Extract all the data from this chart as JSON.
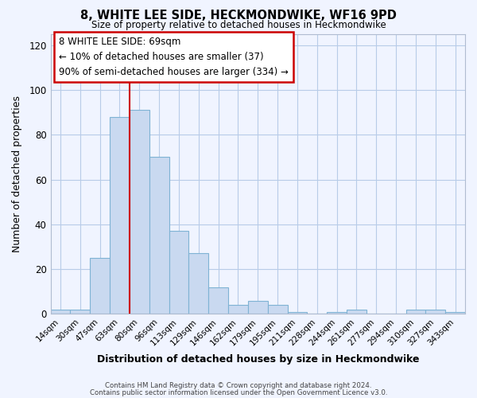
{
  "title": "8, WHITE LEE SIDE, HECKMONDWIKE, WF16 9PD",
  "subtitle": "Size of property relative to detached houses in Heckmondwike",
  "xlabel": "Distribution of detached houses by size in Heckmondwike",
  "ylabel": "Number of detached properties",
  "footer_line1": "Contains HM Land Registry data © Crown copyright and database right 2024.",
  "footer_line2": "Contains public sector information licensed under the Open Government Licence v3.0.",
  "bar_labels": [
    "14sqm",
    "30sqm",
    "47sqm",
    "63sqm",
    "80sqm",
    "96sqm",
    "113sqm",
    "129sqm",
    "146sqm",
    "162sqm",
    "179sqm",
    "195sqm",
    "211sqm",
    "228sqm",
    "244sqm",
    "261sqm",
    "277sqm",
    "294sqm",
    "310sqm",
    "327sqm",
    "343sqm"
  ],
  "bar_values": [
    2,
    2,
    25,
    88,
    91,
    70,
    37,
    27,
    12,
    4,
    6,
    4,
    1,
    0,
    1,
    2,
    0,
    0,
    2,
    2,
    1
  ],
  "bar_color": "#c9d9f0",
  "bar_edge_color": "#7fb3d4",
  "ylim": [
    0,
    125
  ],
  "yticks": [
    0,
    20,
    40,
    60,
    80,
    100,
    120
  ],
  "vline_color": "#cc0000",
  "annotation_text": "8 WHITE LEE SIDE: 69sqm\n← 10% of detached houses are smaller (37)\n90% of semi-detached houses are larger (334) →",
  "background_color": "#f0f4ff",
  "grid_color": "#b8cce8",
  "spine_color": "#b0bcd0"
}
